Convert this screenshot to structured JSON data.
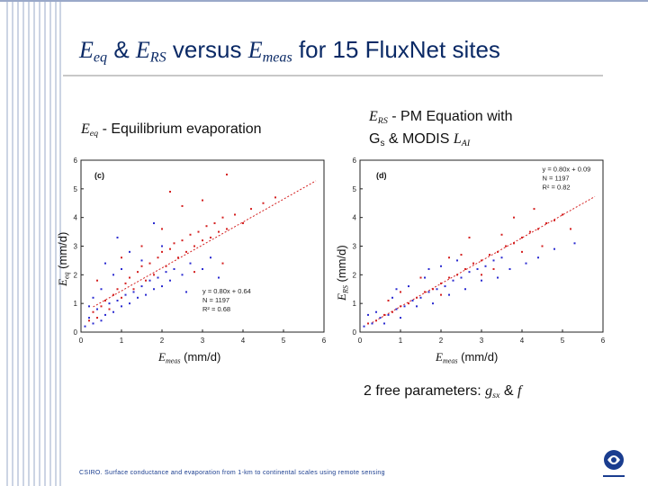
{
  "title": {
    "e1": "E",
    "e1_sub": "eq",
    "amp": " & ",
    "e2": "E",
    "e2_sub": "RS",
    "mid": " versus ",
    "e3": "E",
    "e3_sub": "meas",
    "rest": " for 15 FluxNet sites"
  },
  "left_label": {
    "sym": "E",
    "sub": "eq",
    "text": " - Equilibrium evaporation"
  },
  "right_label": {
    "sym": "E",
    "sub": "RS",
    "text1": " - PM Equation with",
    "g": "G",
    "g_sub": "s",
    "text2": " & MODIS ",
    "lai": "L",
    "lai_sub": "AI"
  },
  "params": {
    "text": "2 free parameters: ",
    "g": "g",
    "g_sub": "sx",
    "amp": " & ",
    "f": "f"
  },
  "footer": "CSIRO.  Surface conductance and evaporation from 1-km to continental scales using remote sensing",
  "colors": {
    "navy": "#0b2a66",
    "red": "#d42020",
    "blue": "#2a2ad0",
    "stripe": "#9aa9c9"
  },
  "chart_data": [
    {
      "type": "scatter",
      "panel": "(c)",
      "xlabel": {
        "sym": "E",
        "sub": "meas",
        "unit": " (mm/d)"
      },
      "ylabel": {
        "sym": "E",
        "sub": "eq",
        "unit": " (mm/d)"
      },
      "xlim": [
        0,
        6
      ],
      "ylim": [
        0,
        6
      ],
      "xticks": [
        "0",
        "1",
        "2",
        "3",
        "4",
        "5",
        "6"
      ],
      "yticks": [
        "0",
        "1",
        "2",
        "3",
        "4",
        "5",
        "6"
      ],
      "fit": {
        "slope": 0.8,
        "intercept": 0.64
      },
      "annotation": [
        "y = 0.80x + 0.64",
        "N = 1197",
        "R² = 0.68"
      ],
      "series": [
        {
          "color": "red",
          "points": [
            [
              0.2,
              0.4
            ],
            [
              0.3,
              0.7
            ],
            [
              0.4,
              0.5
            ],
            [
              0.5,
              0.9
            ],
            [
              0.6,
              1.1
            ],
            [
              0.7,
              0.8
            ],
            [
              0.8,
              1.3
            ],
            [
              0.9,
              1.5
            ],
            [
              1.0,
              1.2
            ],
            [
              1.1,
              1.7
            ],
            [
              1.2,
              1.9
            ],
            [
              1.3,
              1.5
            ],
            [
              1.4,
              2.1
            ],
            [
              1.5,
              2.3
            ],
            [
              1.6,
              1.8
            ],
            [
              1.7,
              2.4
            ],
            [
              1.8,
              2.0
            ],
            [
              1.9,
              2.6
            ],
            [
              2.0,
              2.8
            ],
            [
              2.1,
              2.3
            ],
            [
              2.2,
              2.9
            ],
            [
              2.3,
              3.1
            ],
            [
              2.4,
              2.6
            ],
            [
              2.5,
              3.2
            ],
            [
              2.6,
              2.8
            ],
            [
              2.7,
              3.4
            ],
            [
              2.8,
              3.0
            ],
            [
              2.9,
              3.5
            ],
            [
              3.0,
              3.2
            ],
            [
              3.1,
              3.7
            ],
            [
              3.2,
              3.3
            ],
            [
              3.3,
              3.8
            ],
            [
              3.4,
              3.5
            ],
            [
              3.5,
              4.0
            ],
            [
              3.6,
              3.6
            ],
            [
              3.8,
              4.1
            ],
            [
              4.0,
              3.8
            ],
            [
              4.2,
              4.3
            ],
            [
              4.5,
              4.5
            ],
            [
              4.8,
              4.7
            ],
            [
              2.0,
              3.6
            ],
            [
              2.5,
              4.4
            ],
            [
              1.5,
              3.0
            ],
            [
              3.0,
              4.6
            ],
            [
              3.5,
              2.4
            ],
            [
              1.0,
              2.6
            ],
            [
              2.2,
              4.9
            ],
            [
              3.6,
              5.5
            ],
            [
              0.4,
              1.8
            ],
            [
              2.8,
              2.1
            ]
          ]
        },
        {
          "color": "blue",
          "points": [
            [
              0.1,
              0.2
            ],
            [
              0.2,
              0.5
            ],
            [
              0.3,
              0.3
            ],
            [
              0.4,
              0.8
            ],
            [
              0.5,
              0.4
            ],
            [
              0.6,
              0.6
            ],
            [
              0.7,
              1.0
            ],
            [
              0.8,
              0.7
            ],
            [
              0.9,
              1.1
            ],
            [
              1.0,
              0.9
            ],
            [
              1.1,
              1.3
            ],
            [
              1.2,
              1.0
            ],
            [
              1.3,
              1.4
            ],
            [
              1.4,
              1.2
            ],
            [
              1.5,
              1.6
            ],
            [
              1.6,
              1.3
            ],
            [
              1.7,
              1.8
            ],
            [
              1.8,
              1.5
            ],
            [
              1.9,
              1.9
            ],
            [
              2.0,
              1.6
            ],
            [
              2.1,
              2.1
            ],
            [
              2.2,
              1.8
            ],
            [
              2.3,
              2.2
            ],
            [
              2.5,
              2.0
            ],
            [
              2.7,
              2.4
            ],
            [
              3.0,
              2.2
            ],
            [
              3.2,
              2.6
            ],
            [
              0.5,
              1.5
            ],
            [
              1.0,
              2.2
            ],
            [
              1.5,
              2.5
            ],
            [
              0.3,
              1.2
            ],
            [
              0.8,
              2.0
            ],
            [
              2.0,
              3.0
            ],
            [
              1.2,
              2.8
            ],
            [
              0.6,
              2.4
            ],
            [
              2.6,
              1.4
            ],
            [
              3.4,
              1.9
            ],
            [
              0.9,
              3.3
            ],
            [
              1.8,
              3.8
            ],
            [
              0.2,
              0.9
            ]
          ]
        }
      ]
    },
    {
      "type": "scatter",
      "panel": "(d)",
      "xlabel": {
        "sym": "E",
        "sub": "meas",
        "unit": " (mm/d)"
      },
      "ylabel": {
        "sym": "E",
        "sub": "RS",
        "unit": " (mm/d)"
      },
      "xlim": [
        0,
        6
      ],
      "ylim": [
        0,
        6
      ],
      "xticks": [
        "0",
        "1",
        "2",
        "3",
        "4",
        "5",
        "6"
      ],
      "yticks": [
        "0",
        "1",
        "2",
        "3",
        "4",
        "5",
        "6"
      ],
      "fit": {
        "slope": 0.8,
        "intercept": 0.09
      },
      "annotation": [
        "y = 0.80x + 0.09",
        "N = 1197",
        "R² = 0.82"
      ],
      "series": [
        {
          "color": "red",
          "points": [
            [
              0.2,
              0.3
            ],
            [
              0.4,
              0.4
            ],
            [
              0.6,
              0.6
            ],
            [
              0.8,
              0.7
            ],
            [
              1.0,
              0.9
            ],
            [
              1.2,
              1.0
            ],
            [
              1.4,
              1.2
            ],
            [
              1.6,
              1.4
            ],
            [
              1.8,
              1.5
            ],
            [
              2.0,
              1.7
            ],
            [
              2.2,
              1.9
            ],
            [
              2.4,
              2.0
            ],
            [
              2.6,
              2.2
            ],
            [
              2.8,
              2.4
            ],
            [
              3.0,
              2.5
            ],
            [
              3.2,
              2.7
            ],
            [
              3.4,
              2.8
            ],
            [
              3.6,
              3.0
            ],
            [
              3.8,
              3.1
            ],
            [
              4.0,
              3.3
            ],
            [
              4.2,
              3.5
            ],
            [
              4.4,
              3.6
            ],
            [
              4.6,
              3.8
            ],
            [
              4.8,
              3.9
            ],
            [
              5.0,
              4.1
            ],
            [
              1.5,
              1.9
            ],
            [
              2.5,
              2.7
            ],
            [
              3.5,
              3.4
            ],
            [
              2.0,
              1.3
            ],
            [
              3.0,
              2.0
            ],
            [
              4.0,
              2.8
            ],
            [
              1.0,
              1.4
            ],
            [
              2.7,
              3.3
            ],
            [
              3.8,
              4.0
            ],
            [
              4.5,
              3.0
            ],
            [
              5.2,
              3.6
            ],
            [
              0.7,
              1.1
            ],
            [
              3.3,
              2.2
            ],
            [
              2.2,
              2.6
            ],
            [
              4.3,
              4.3
            ]
          ]
        },
        {
          "color": "blue",
          "points": [
            [
              0.1,
              0.2
            ],
            [
              0.3,
              0.3
            ],
            [
              0.5,
              0.5
            ],
            [
              0.7,
              0.6
            ],
            [
              0.9,
              0.8
            ],
            [
              1.1,
              0.9
            ],
            [
              1.3,
              1.1
            ],
            [
              1.5,
              1.2
            ],
            [
              1.7,
              1.4
            ],
            [
              1.9,
              1.5
            ],
            [
              2.1,
              1.6
            ],
            [
              2.3,
              1.8
            ],
            [
              2.5,
              1.9
            ],
            [
              2.7,
              2.1
            ],
            [
              2.9,
              2.2
            ],
            [
              3.1,
              2.3
            ],
            [
              3.3,
              2.5
            ],
            [
              3.5,
              2.6
            ],
            [
              0.4,
              0.7
            ],
            [
              0.8,
              1.2
            ],
            [
              1.2,
              1.6
            ],
            [
              1.6,
              1.9
            ],
            [
              2.0,
              2.3
            ],
            [
              2.4,
              2.5
            ],
            [
              0.6,
              0.3
            ],
            [
              1.4,
              0.9
            ],
            [
              2.2,
              1.3
            ],
            [
              3.0,
              1.8
            ],
            [
              3.7,
              2.2
            ],
            [
              4.1,
              2.4
            ],
            [
              0.2,
              0.6
            ],
            [
              1.0,
              0.5
            ],
            [
              1.8,
              1.0
            ],
            [
              2.6,
              1.5
            ],
            [
              3.4,
              1.9
            ],
            [
              4.4,
              2.6
            ],
            [
              0.9,
              1.5
            ],
            [
              1.7,
              2.2
            ],
            [
              4.8,
              2.9
            ],
            [
              5.3,
              3.1
            ]
          ]
        }
      ]
    }
  ]
}
